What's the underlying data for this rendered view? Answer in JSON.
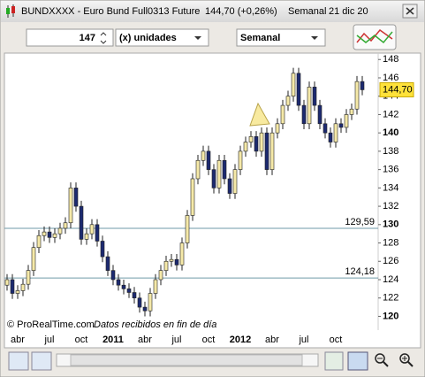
{
  "header": {
    "symbol": "BUNDXXXX - Euro Bund Full0313 Future",
    "quote": "144,70 (+0,26%)",
    "period": "Semanal",
    "date": "21 dic 20"
  },
  "toolbar": {
    "units_value": "147",
    "units": "(x) unidades",
    "period": "Semanal"
  },
  "chart_data": {
    "type": "candlestick",
    "categories": [
      null,
      null,
      "abr",
      null,
      null,
      null,
      null,
      null,
      "jul",
      null,
      null,
      null,
      null,
      null,
      "oct",
      null,
      null,
      null,
      null,
      null,
      "2011",
      null,
      null,
      null,
      null,
      null,
      "abr",
      null,
      null,
      null,
      null,
      null,
      "jul",
      null,
      null,
      null,
      null,
      null,
      "oct",
      null,
      null,
      null,
      null,
      null,
      "2012",
      null,
      null,
      null,
      null,
      null,
      "abr",
      null,
      null,
      null,
      null,
      null,
      "jul",
      null,
      null,
      null,
      null,
      null,
      "oct",
      null,
      null,
      null,
      null,
      null
    ],
    "open": [
      123.4,
      124.0,
      122.5,
      122.8,
      123.5,
      125.0,
      127.5,
      128.8,
      129.2,
      128.6,
      129.0,
      129.6,
      130.2,
      134.0,
      132.0,
      128.4,
      129.0,
      130.0,
      128.2,
      126.5,
      125.0,
      124.0,
      123.4,
      123.0,
      122.6,
      122.0,
      121.0,
      120.6,
      122.5,
      124.0,
      125.0,
      126.0,
      126.2,
      125.6,
      128.0,
      131.0,
      135.0,
      137.0,
      138.0,
      136.0,
      134.0,
      137.0,
      135.0,
      133.4,
      136.0,
      138.0,
      139.0,
      139.6,
      138.0,
      140.0,
      136.0,
      140.0,
      141.0,
      143.0,
      144.0,
      146.5,
      143.0,
      141.0,
      145.0,
      143.0,
      141.0,
      140.0,
      139.0,
      141.0,
      140.6,
      142.0,
      142.6,
      145.6
    ],
    "high": [
      124.6,
      124.6,
      123.4,
      124.1,
      125.6,
      128.1,
      129.4,
      129.8,
      129.8,
      129.6,
      130.2,
      130.8,
      134.6,
      134.6,
      132.6,
      129.6,
      130.6,
      130.6,
      128.8,
      127.1,
      125.6,
      124.6,
      124.0,
      123.6,
      123.2,
      122.6,
      121.6,
      123.1,
      124.6,
      125.6,
      126.6,
      126.8,
      126.8,
      128.6,
      131.6,
      135.6,
      137.6,
      138.6,
      138.6,
      136.6,
      137.6,
      137.6,
      135.6,
      136.6,
      138.6,
      139.6,
      140.2,
      140.2,
      140.6,
      140.6,
      140.6,
      141.6,
      143.6,
      144.6,
      147.1,
      147.1,
      143.6,
      145.6,
      145.6,
      143.6,
      141.6,
      140.6,
      141.6,
      141.6,
      142.6,
      143.2,
      146.2,
      146.2
    ],
    "low": [
      122.8,
      121.9,
      121.9,
      122.2,
      122.9,
      124.4,
      126.9,
      128.2,
      128.0,
      128.0,
      128.4,
      129.0,
      129.6,
      131.4,
      127.8,
      127.8,
      128.4,
      127.6,
      125.9,
      124.4,
      123.4,
      122.8,
      122.4,
      122.0,
      121.4,
      120.4,
      120.0,
      120.0,
      121.9,
      123.4,
      124.4,
      125.4,
      125.0,
      125.0,
      127.4,
      130.4,
      134.4,
      136.4,
      135.4,
      133.4,
      133.4,
      134.4,
      132.8,
      132.8,
      135.4,
      137.4,
      138.4,
      137.4,
      137.4,
      135.4,
      135.4,
      139.4,
      140.4,
      142.4,
      143.4,
      142.4,
      140.4,
      140.4,
      142.4,
      140.4,
      139.4,
      138.4,
      138.4,
      140.0,
      140.0,
      141.4,
      142.0,
      144.1
    ],
    "close": [
      124.0,
      122.5,
      122.8,
      123.5,
      125.0,
      127.5,
      128.8,
      129.2,
      128.6,
      129.0,
      129.6,
      130.2,
      134.0,
      132.0,
      128.4,
      129.0,
      130.0,
      128.2,
      126.5,
      125.0,
      124.0,
      123.4,
      123.0,
      122.6,
      122.0,
      121.0,
      120.6,
      122.5,
      124.0,
      125.0,
      126.0,
      126.2,
      125.6,
      128.0,
      131.0,
      135.0,
      137.0,
      138.0,
      136.0,
      134.0,
      137.0,
      135.0,
      133.4,
      136.0,
      138.0,
      139.0,
      139.6,
      138.0,
      140.0,
      136.0,
      140.0,
      141.0,
      143.0,
      144.0,
      146.5,
      143.0,
      141.0,
      145.0,
      143.0,
      141.0,
      140.0,
      139.0,
      141.0,
      140.6,
      142.0,
      142.6,
      145.6,
      144.7
    ],
    "up_color": "#f5e9a8",
    "down_color": "#1c2a70",
    "ylim": [
      118.5,
      148.7
    ],
    "yticks": [
      120,
      122,
      124,
      126,
      128,
      130,
      132,
      134,
      136,
      138,
      140,
      142,
      144,
      146,
      148
    ],
    "levels": [
      {
        "value": 129.59,
        "label": "129,59"
      },
      {
        "value": 124.18,
        "label": "124,18"
      }
    ],
    "last": {
      "value": 144.7,
      "label": "144,70"
    },
    "source": "© ProRealTime.com",
    "note": "Datos recibidos en fin de día"
  }
}
